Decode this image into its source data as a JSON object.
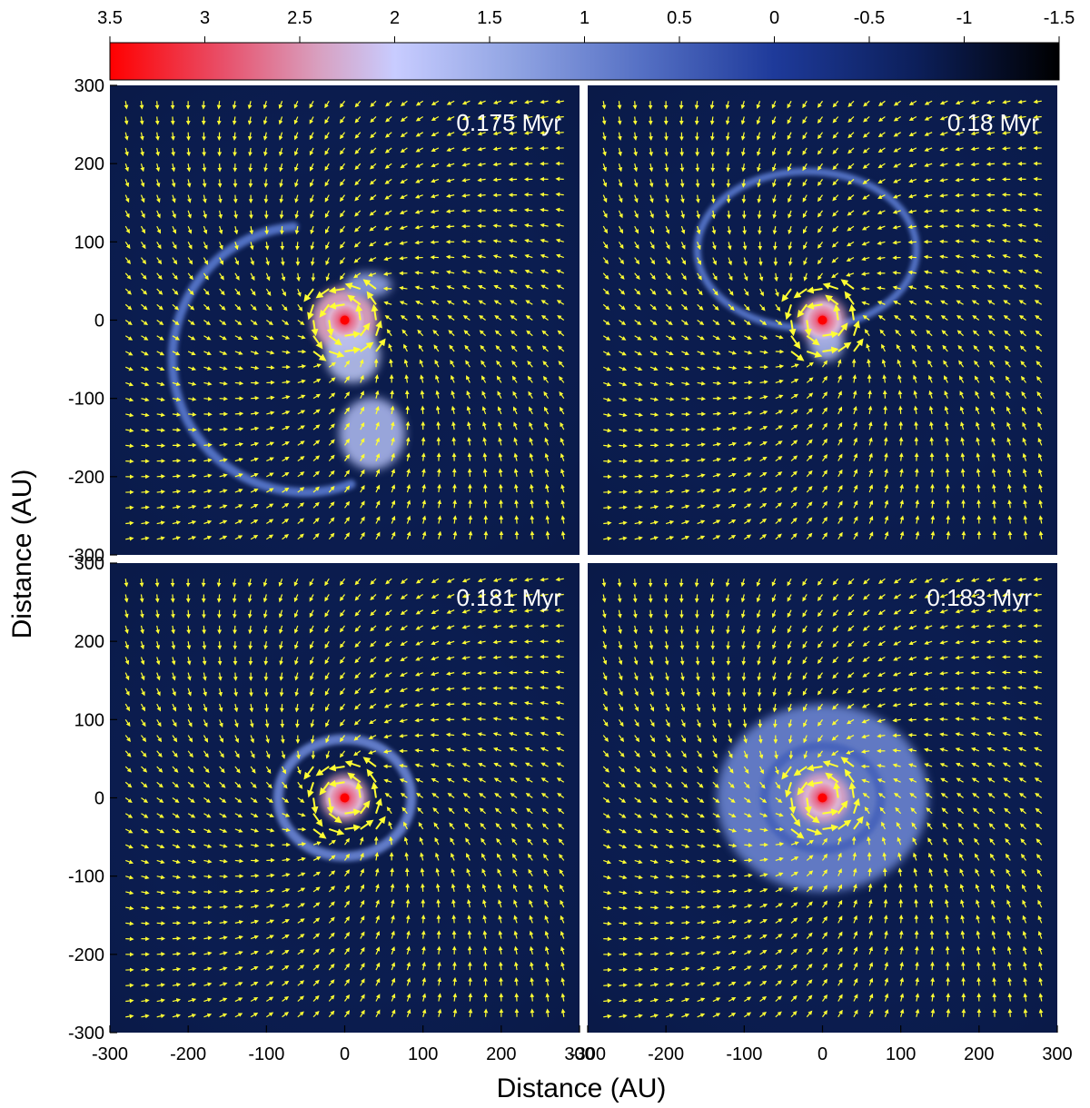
{
  "chart_data": {
    "type": "heatmap",
    "title": "",
    "xlabel": "Distance (AU)",
    "ylabel": "Distance (AU)",
    "xlim": [
      -300,
      300
    ],
    "ylim": [
      -300,
      300
    ],
    "colorbar": {
      "range": [
        3.5,
        -1.5
      ],
      "ticks": [
        3.5,
        3,
        2.5,
        2,
        1.5,
        1,
        0.5,
        0,
        -0.5,
        -1,
        -1.5
      ],
      "tick_labels": [
        "3.5",
        "3",
        "2.5",
        "2",
        "1.5",
        "1",
        "0.5",
        "0",
        "-0.5",
        "-1",
        "-1.5"
      ],
      "colors": [
        "#ff0000",
        "#e8506a",
        "#d8a0c0",
        "#c8ccff",
        "#93a6e4",
        "#5570c4",
        "#1e3a9a",
        "#0c1f5a",
        "#050a1a"
      ]
    },
    "x_ticks": [
      -300,
      -200,
      -100,
      0,
      100,
      200,
      300
    ],
    "x_tick_labels": [
      "-300",
      "-200",
      "-100",
      "0",
      "100",
      "200",
      "300"
    ],
    "y_ticks": [
      300,
      200,
      100,
      0,
      -100,
      -200,
      -300
    ],
    "y_tick_labels": [
      "300",
      "200",
      "100",
      "0",
      "-100",
      "-200",
      "-300"
    ],
    "panels": [
      {
        "id": "p1",
        "time": "0.175 Myr",
        "features": [
          {
            "kind": "arc",
            "cx": -50,
            "cy": -50,
            "r": 170,
            "rx": 170,
            "ry": 170,
            "a0": 95,
            "a1": 290,
            "w": 10,
            "color": "#5a7ad0"
          },
          {
            "kind": "blob",
            "cx": 0,
            "cy": 0,
            "rx": 42,
            "ry": 42,
            "color": "#e8a8c4"
          },
          {
            "kind": "blob",
            "cx": 10,
            "cy": -45,
            "rx": 35,
            "ry": 35,
            "color": "#b8c2f0"
          },
          {
            "kind": "blob",
            "cx": 35,
            "cy": -145,
            "rx": 42,
            "ry": 46,
            "color": "#a8b4ea"
          },
          {
            "kind": "blob",
            "cx": 30,
            "cy": 45,
            "rx": 30,
            "ry": 16,
            "color": "#8ea0e0"
          }
        ]
      },
      {
        "id": "p2",
        "time": "0.18 Myr",
        "features": [
          {
            "kind": "ring",
            "cx": -20,
            "cy": 90,
            "rx": 140,
            "ry": 100,
            "w": 8,
            "color": "#5a7ad0"
          },
          {
            "kind": "blob",
            "cx": 0,
            "cy": 0,
            "rx": 30,
            "ry": 30,
            "color": "#e8a8c4"
          },
          {
            "kind": "blob",
            "cx": 5,
            "cy": -30,
            "rx": 22,
            "ry": 22,
            "color": "#a8b4ea"
          }
        ]
      },
      {
        "id": "p3",
        "time": "0.181 Myr",
        "features": [
          {
            "kind": "ring",
            "cx": 0,
            "cy": 0,
            "rx": 85,
            "ry": 75,
            "w": 11,
            "color": "#6b86d6"
          },
          {
            "kind": "blob",
            "cx": 0,
            "cy": 0,
            "rx": 30,
            "ry": 30,
            "color": "#e8a8c4"
          }
        ]
      },
      {
        "id": "p4",
        "time": "0.183 Myr",
        "features": [
          {
            "kind": "disk",
            "cx": 0,
            "cy": 0,
            "rx": 135,
            "ry": 120,
            "color": "#6f8ad8"
          },
          {
            "kind": "blob",
            "cx": 0,
            "cy": 0,
            "rx": 34,
            "ry": 32,
            "color": "#e8a8c4"
          }
        ]
      }
    ]
  }
}
